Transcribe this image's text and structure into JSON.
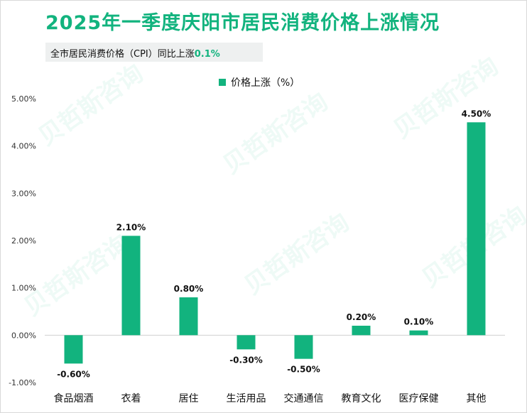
{
  "title": "2025年一季度庆阳市居民消费价格上涨情况",
  "subtitle": {
    "label": "全市居民消费价格（CPI）同比上涨",
    "value": "0.1%"
  },
  "watermark": "贝哲斯咨询",
  "colors": {
    "bar": "#12b37e",
    "title": "#12b37e"
  },
  "chart_data": {
    "type": "bar",
    "title": "2025年一季度庆阳市居民消费价格上涨情况",
    "legend": "价格上涨（%）",
    "categories": [
      "食品烟酒",
      "衣着",
      "居住",
      "生活用品",
      "交通通信",
      "教育文化",
      "医疗保健",
      "其他"
    ],
    "values": [
      -0.6,
      2.1,
      0.8,
      -0.3,
      -0.5,
      0.2,
      0.1,
      4.5
    ],
    "value_labels": [
      "-0.60%",
      "2.10%",
      "0.80%",
      "-0.30%",
      "-0.50%",
      "0.20%",
      "0.10%",
      "4.50%"
    ],
    "ylim": [
      -1.0,
      5.0
    ],
    "yticks": [
      -1.0,
      0.0,
      1.0,
      2.0,
      3.0,
      4.0,
      5.0
    ],
    "ytick_labels": [
      "-1.00%",
      "0.00%",
      "1.00%",
      "2.00%",
      "3.00%",
      "4.00%",
      "5.00%"
    ],
    "xlabel": "",
    "ylabel": ""
  }
}
